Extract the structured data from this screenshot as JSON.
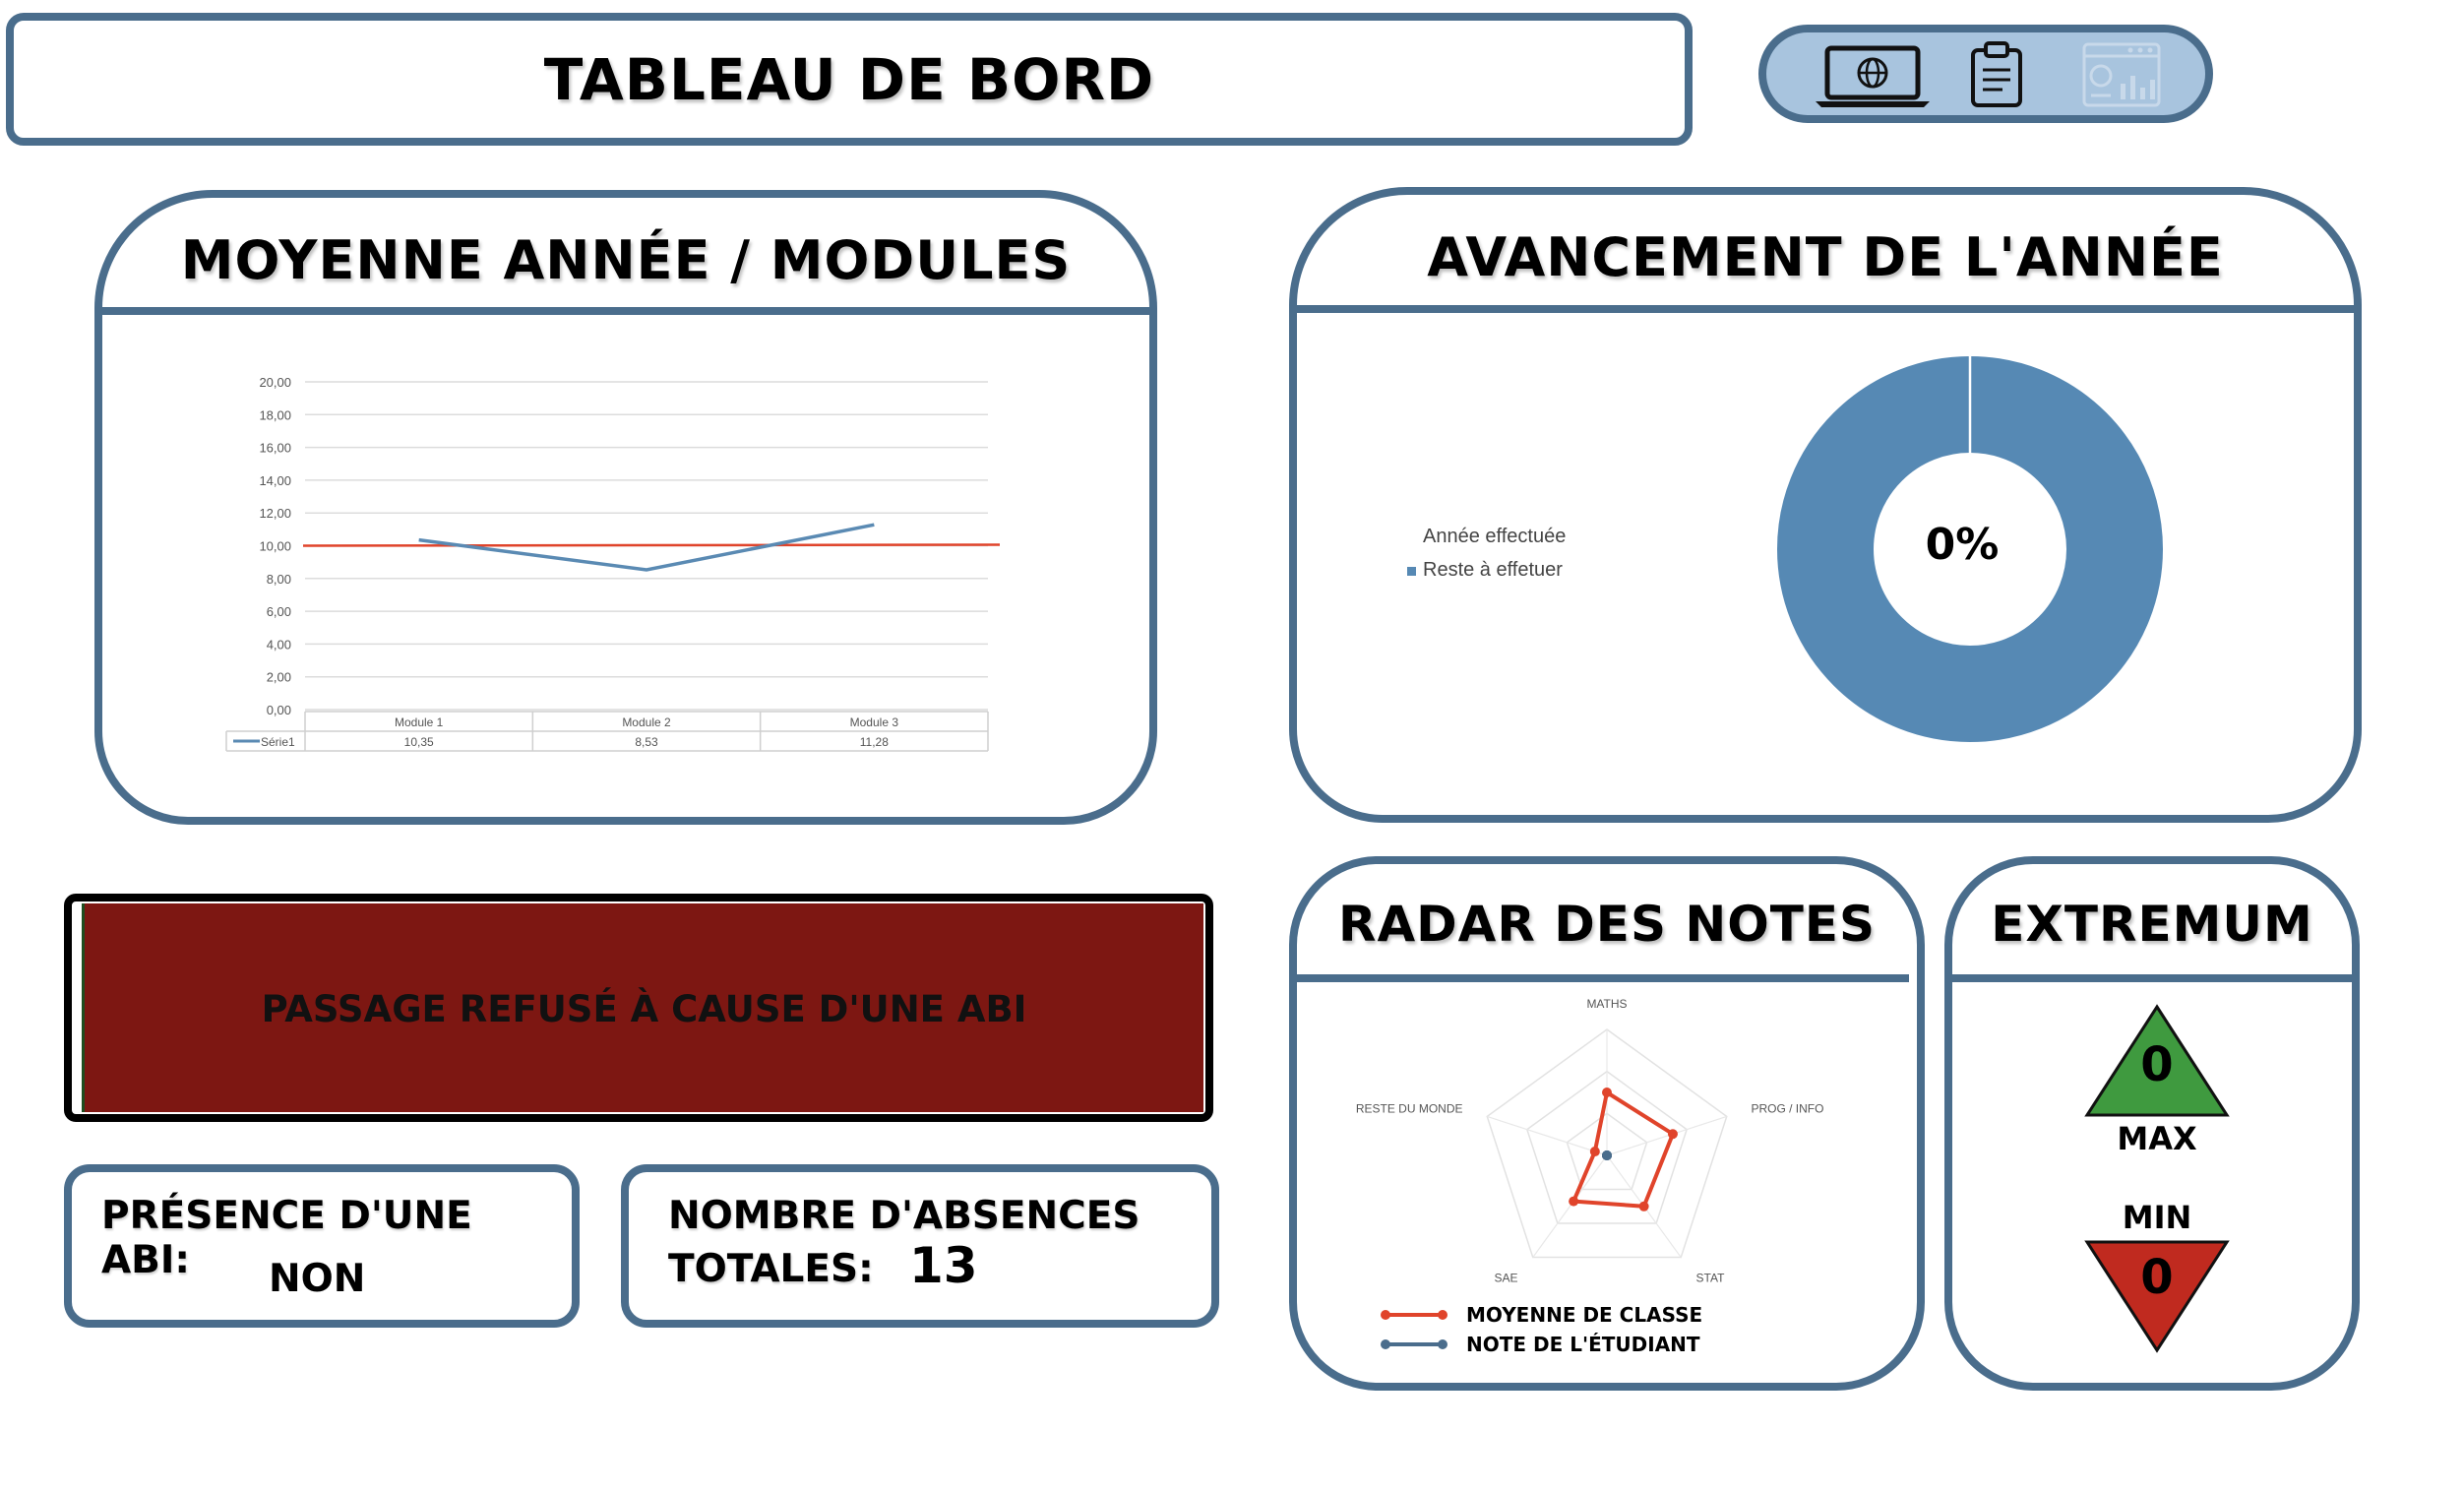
{
  "header": {
    "title": "TABLEAU DE BORD"
  },
  "toolbar": {
    "icons": [
      "laptop-globe-icon",
      "clipboard-icon",
      "dashboard-icon"
    ]
  },
  "moyenne_panel": {
    "title": "MOYENNE ANNÉE / MODULES"
  },
  "avancement_panel": {
    "title": "AVANCEMENT DE L'ANNÉE",
    "center_value": "0%",
    "legend": [
      "Année effectuée",
      "Reste à effetuer"
    ]
  },
  "status_banner": {
    "text": "PASSAGE REFUSÉ À CAUSE D'UNE ABI"
  },
  "abi_box": {
    "label": "PRÉSENCE D'UNE ABI:",
    "value": "NON"
  },
  "absences_box": {
    "label_line1": "NOMBRE D'ABSENCES",
    "label_line2": "TOTALES:",
    "value": "13"
  },
  "radar_panel": {
    "title": "RADAR DES NOTES",
    "legend": [
      "MOYENNE DE CLASSE",
      "NOTE DE L'ÉTUDIANT"
    ]
  },
  "extremum_panel": {
    "title": "EXTREMUM",
    "max_value": "0",
    "max_label": "MAX",
    "min_label": "MIN",
    "min_value": "0"
  },
  "colors": {
    "frame": "#4a6d8c",
    "line_blue": "#5a8ab3",
    "line_red": "#e0442b",
    "donut": "#5689b4",
    "banner": "#7d1712",
    "tri_green": "#3f9a3f",
    "tri_red": "#c02a1f"
  },
  "chart_data": [
    {
      "type": "line",
      "categories": [
        "Module 1",
        "Module 2",
        "Module 3"
      ],
      "series": [
        {
          "name": "Série1",
          "values": [
            10.35,
            8.53,
            11.28
          ]
        },
        {
          "values": [
            10,
            10,
            10
          ]
        }
      ],
      "yticks": [
        "20,00",
        "18,00",
        "16,00",
        "14,00",
        "12,00",
        "10,00",
        "8,00",
        "6,00",
        "4,00",
        "2,00",
        "0,00"
      ],
      "table_values": [
        "10,35",
        "8,53",
        "11,28"
      ],
      "ylim": [
        0,
        20
      ],
      "grid": true
    },
    {
      "type": "pie",
      "labels": [
        "Année effectuée",
        "Reste à effetuer"
      ],
      "values": [
        0,
        100
      ]
    },
    {
      "type": "radar",
      "axes": [
        "MATHS",
        "PROG / INFO",
        "STAT",
        "SAE",
        "RESTE DU MONDE"
      ],
      "series": [
        {
          "name": "MOYENNE DE CLASSE",
          "values": [
            10,
            11,
            10,
            9,
            2
          ]
        },
        {
          "name": "NOTE DE L'ÉTUDIANT",
          "values": [
            0,
            0,
            0,
            0,
            0
          ]
        }
      ],
      "rmax": 20
    }
  ]
}
